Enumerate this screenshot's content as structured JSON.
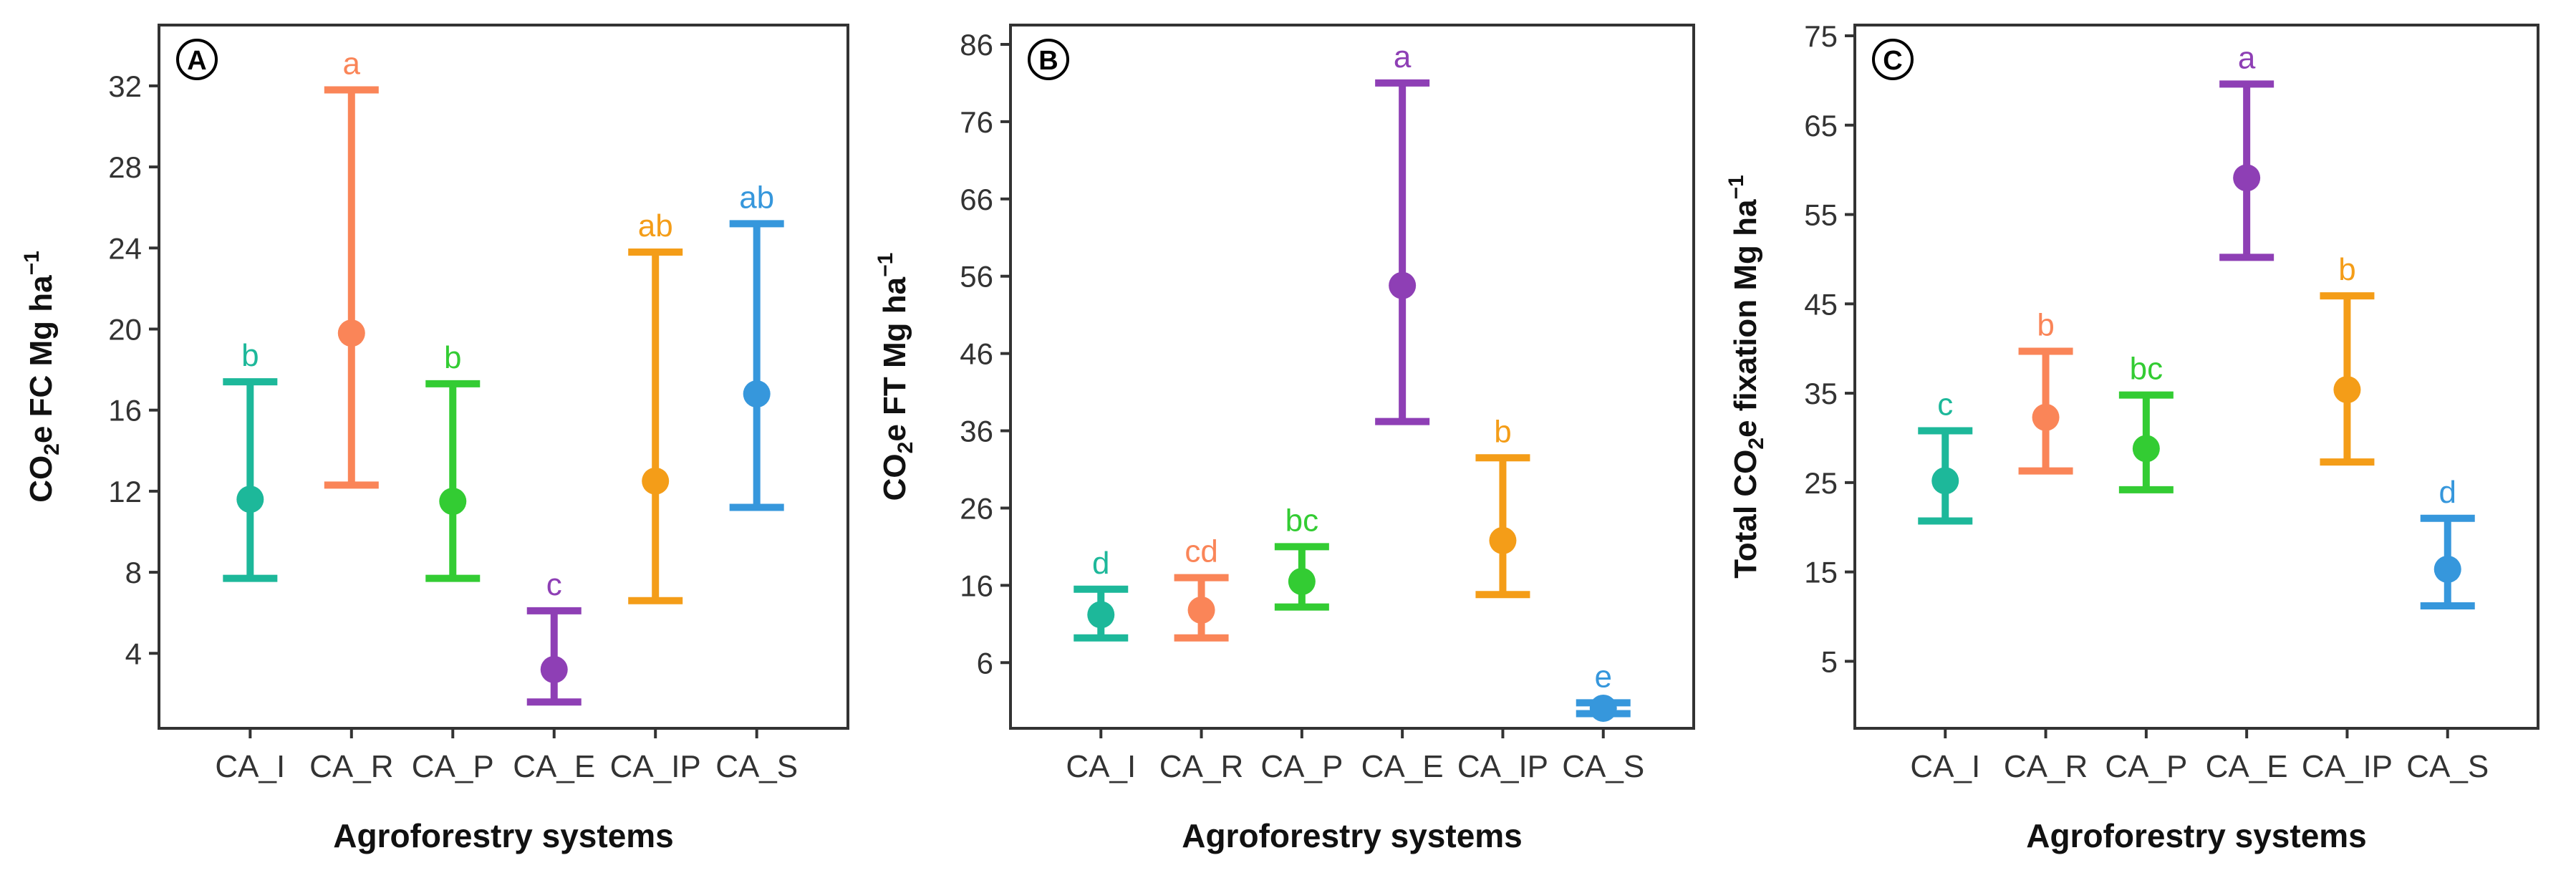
{
  "figure": {
    "xlabel": "Agroforestry systems",
    "categories": [
      "CA_I",
      "CA_R",
      "CA_P",
      "CA_E",
      "CA_IP",
      "CA_S"
    ],
    "colors": [
      "#1db89a",
      "#fa8558",
      "#33cc33",
      "#8e3fb5",
      "#f49d18",
      "#3697dc"
    ]
  },
  "chart_data": [
    {
      "type": "errorbar",
      "panel": "A",
      "title": "",
      "ylabel": "CO₂e FC Mg ha⁻¹",
      "ylabel_parts": {
        "pre": "CO",
        "sub": "2",
        "post": "e FC Mg ha",
        "sup": "−1"
      },
      "xlabel": "Agroforestry systems",
      "categories": [
        "CA_I",
        "CA_R",
        "CA_P",
        "CA_E",
        "CA_IP",
        "CA_S"
      ],
      "mean": [
        11.6,
        19.8,
        11.5,
        3.2,
        12.5,
        16.8
      ],
      "lower": [
        7.7,
        12.3,
        7.7,
        1.6,
        6.6,
        11.2
      ],
      "upper": [
        17.4,
        31.8,
        17.3,
        6.1,
        23.8,
        25.2
      ],
      "letters": [
        "b",
        "a",
        "b",
        "c",
        "ab",
        "ab"
      ],
      "yticks": [
        4,
        8,
        12,
        16,
        20,
        24,
        28,
        32
      ],
      "ylim": [
        0.3,
        35
      ]
    },
    {
      "type": "errorbar",
      "panel": "B",
      "title": "",
      "ylabel": "CO₂e FT Mg ha⁻¹",
      "ylabel_parts": {
        "pre": "CO",
        "sub": "2",
        "post": "e FT Mg ha",
        "sup": "−1"
      },
      "xlabel": "Agroforestry systems",
      "categories": [
        "CA_I",
        "CA_R",
        "CA_P",
        "CA_E",
        "CA_IP",
        "CA_S"
      ],
      "mean": [
        12.2,
        12.8,
        16.5,
        54.8,
        21.8,
        0.1
      ],
      "lower": [
        9.2,
        9.2,
        13.2,
        37.2,
        14.8,
        -0.6
      ],
      "upper": [
        15.5,
        17.0,
        21.0,
        81.0,
        32.5,
        0.8
      ],
      "letters": [
        "d",
        "cd",
        "bc",
        "a",
        "b",
        "e"
      ],
      "yticks": [
        6,
        16,
        26,
        36,
        46,
        56,
        66,
        76,
        86
      ],
      "ylim": [
        -2.5,
        88.5
      ]
    },
    {
      "type": "errorbar",
      "panel": "C",
      "title": "",
      "ylabel": "Total CO₂e fixation Mg ha⁻¹",
      "ylabel_parts": {
        "pre": "Total CO",
        "sub": "2",
        "post": "e fixation Mg ha",
        "sup": "−1"
      },
      "xlabel": "Agroforestry systems",
      "categories": [
        "CA_I",
        "CA_R",
        "CA_P",
        "CA_E",
        "CA_IP",
        "CA_S"
      ],
      "mean": [
        25.2,
        32.3,
        28.8,
        59.1,
        35.4,
        15.3
      ],
      "lower": [
        20.7,
        26.3,
        24.2,
        50.2,
        27.3,
        11.2
      ],
      "upper": [
        30.8,
        39.7,
        34.8,
        69.6,
        45.9,
        21.0
      ],
      "letters": [
        "c",
        "b",
        "bc",
        "a",
        "b",
        "d"
      ],
      "yticks": [
        5,
        15,
        25,
        35,
        45,
        55,
        65,
        75
      ],
      "ylim": [
        -2.5,
        76.2
      ]
    }
  ]
}
